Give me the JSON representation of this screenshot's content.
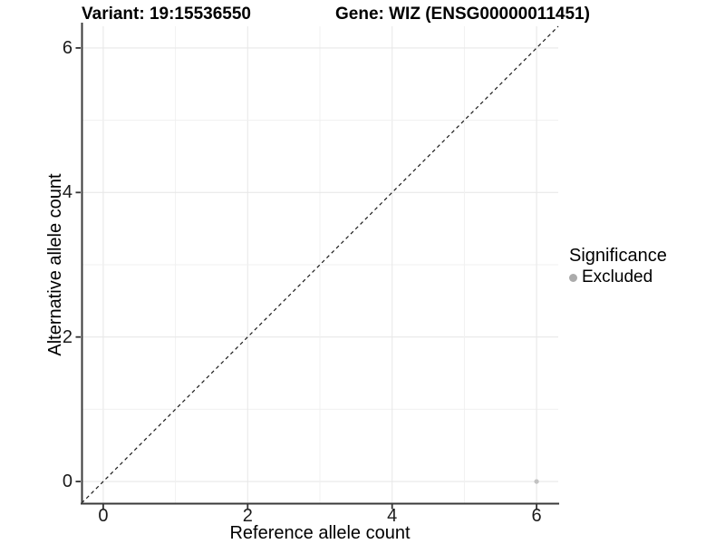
{
  "chart_data": {
    "type": "scatter",
    "title_variant": "Variant: 19:15536550",
    "title_gene": "Gene: WIZ (ENSG00000011451)",
    "xlabel": "Reference allele count",
    "ylabel": "Alternative allele count",
    "xlim": [
      -0.3,
      6.3
    ],
    "ylim": [
      -0.3,
      6.3
    ],
    "xticks": [
      0,
      2,
      4,
      6
    ],
    "yticks": [
      0,
      2,
      4,
      6
    ],
    "grid_positions": [
      0,
      1,
      2,
      3,
      4,
      5,
      6
    ],
    "grid": true,
    "reference_line": {
      "style": "dashed",
      "meaning": "identity y=x",
      "x1": -0.3,
      "y1": -0.3,
      "x2": 6.3,
      "y2": 6.3
    },
    "series": [
      {
        "name": "Excluded",
        "color": "#c2c2c2",
        "points": [
          {
            "x": 6,
            "y": 0
          }
        ]
      }
    ],
    "legend": {
      "title": "Significance",
      "position": "right",
      "items": [
        {
          "label": "Excluded",
          "color": "#ababab"
        }
      ]
    },
    "style": {
      "background": "#ffffff",
      "grid_major_color": "#e8e8e8",
      "grid_minor_color": "#f0f0f0",
      "axis_color": "#3a3a3a",
      "tick_color": "#333333",
      "dash_color": "#1a1a1a",
      "point_radius": 2.6
    }
  }
}
